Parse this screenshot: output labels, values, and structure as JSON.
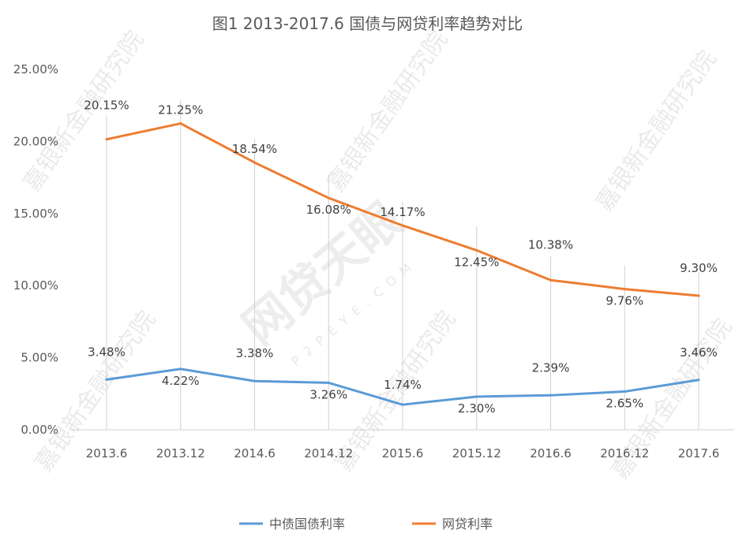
{
  "chart_data": {
    "type": "line",
    "title": "图1 2013-2017.6 国债与网贷利率趋势对比",
    "categories": [
      "2013.6",
      "2013.12",
      "2014.6",
      "2014.12",
      "2015.6",
      "2015.12",
      "2016.6",
      "2016.12",
      "2017.6"
    ],
    "series": [
      {
        "name": "中债国债利率",
        "color": "#5b9bd5",
        "values": [
          3.48,
          4.22,
          3.38,
          3.26,
          1.74,
          2.3,
          2.39,
          2.65,
          3.46
        ],
        "labels": [
          "3.48%",
          "4.22%",
          "3.38%",
          "3.26%",
          "1.74%",
          "2.30%",
          "2.39%",
          "2.65%",
          "3.46%"
        ]
      },
      {
        "name": "网贷利率",
        "color": "#ed7d31",
        "values": [
          20.15,
          21.25,
          18.54,
          16.08,
          14.17,
          12.45,
          10.38,
          9.76,
          9.3
        ],
        "labels": [
          "20.15%",
          "21.25%",
          "18.54%",
          "16.08%",
          "14.17%",
          "12.45%",
          "10.38%",
          "9.76%",
          "9.30%"
        ]
      }
    ],
    "yticks": [
      "0.00%",
      "5.00%",
      "10.00%",
      "15.00%",
      "20.00%",
      "25.00%"
    ],
    "ylim": [
      0,
      25
    ],
    "xlabel": "",
    "ylabel": "",
    "grid": false,
    "legend": "bottom"
  },
  "watermark": {
    "institute": "嘉银新金融研究院",
    "brand": "网贷天眼",
    "brand_sub": "P2PEYE.COM"
  }
}
